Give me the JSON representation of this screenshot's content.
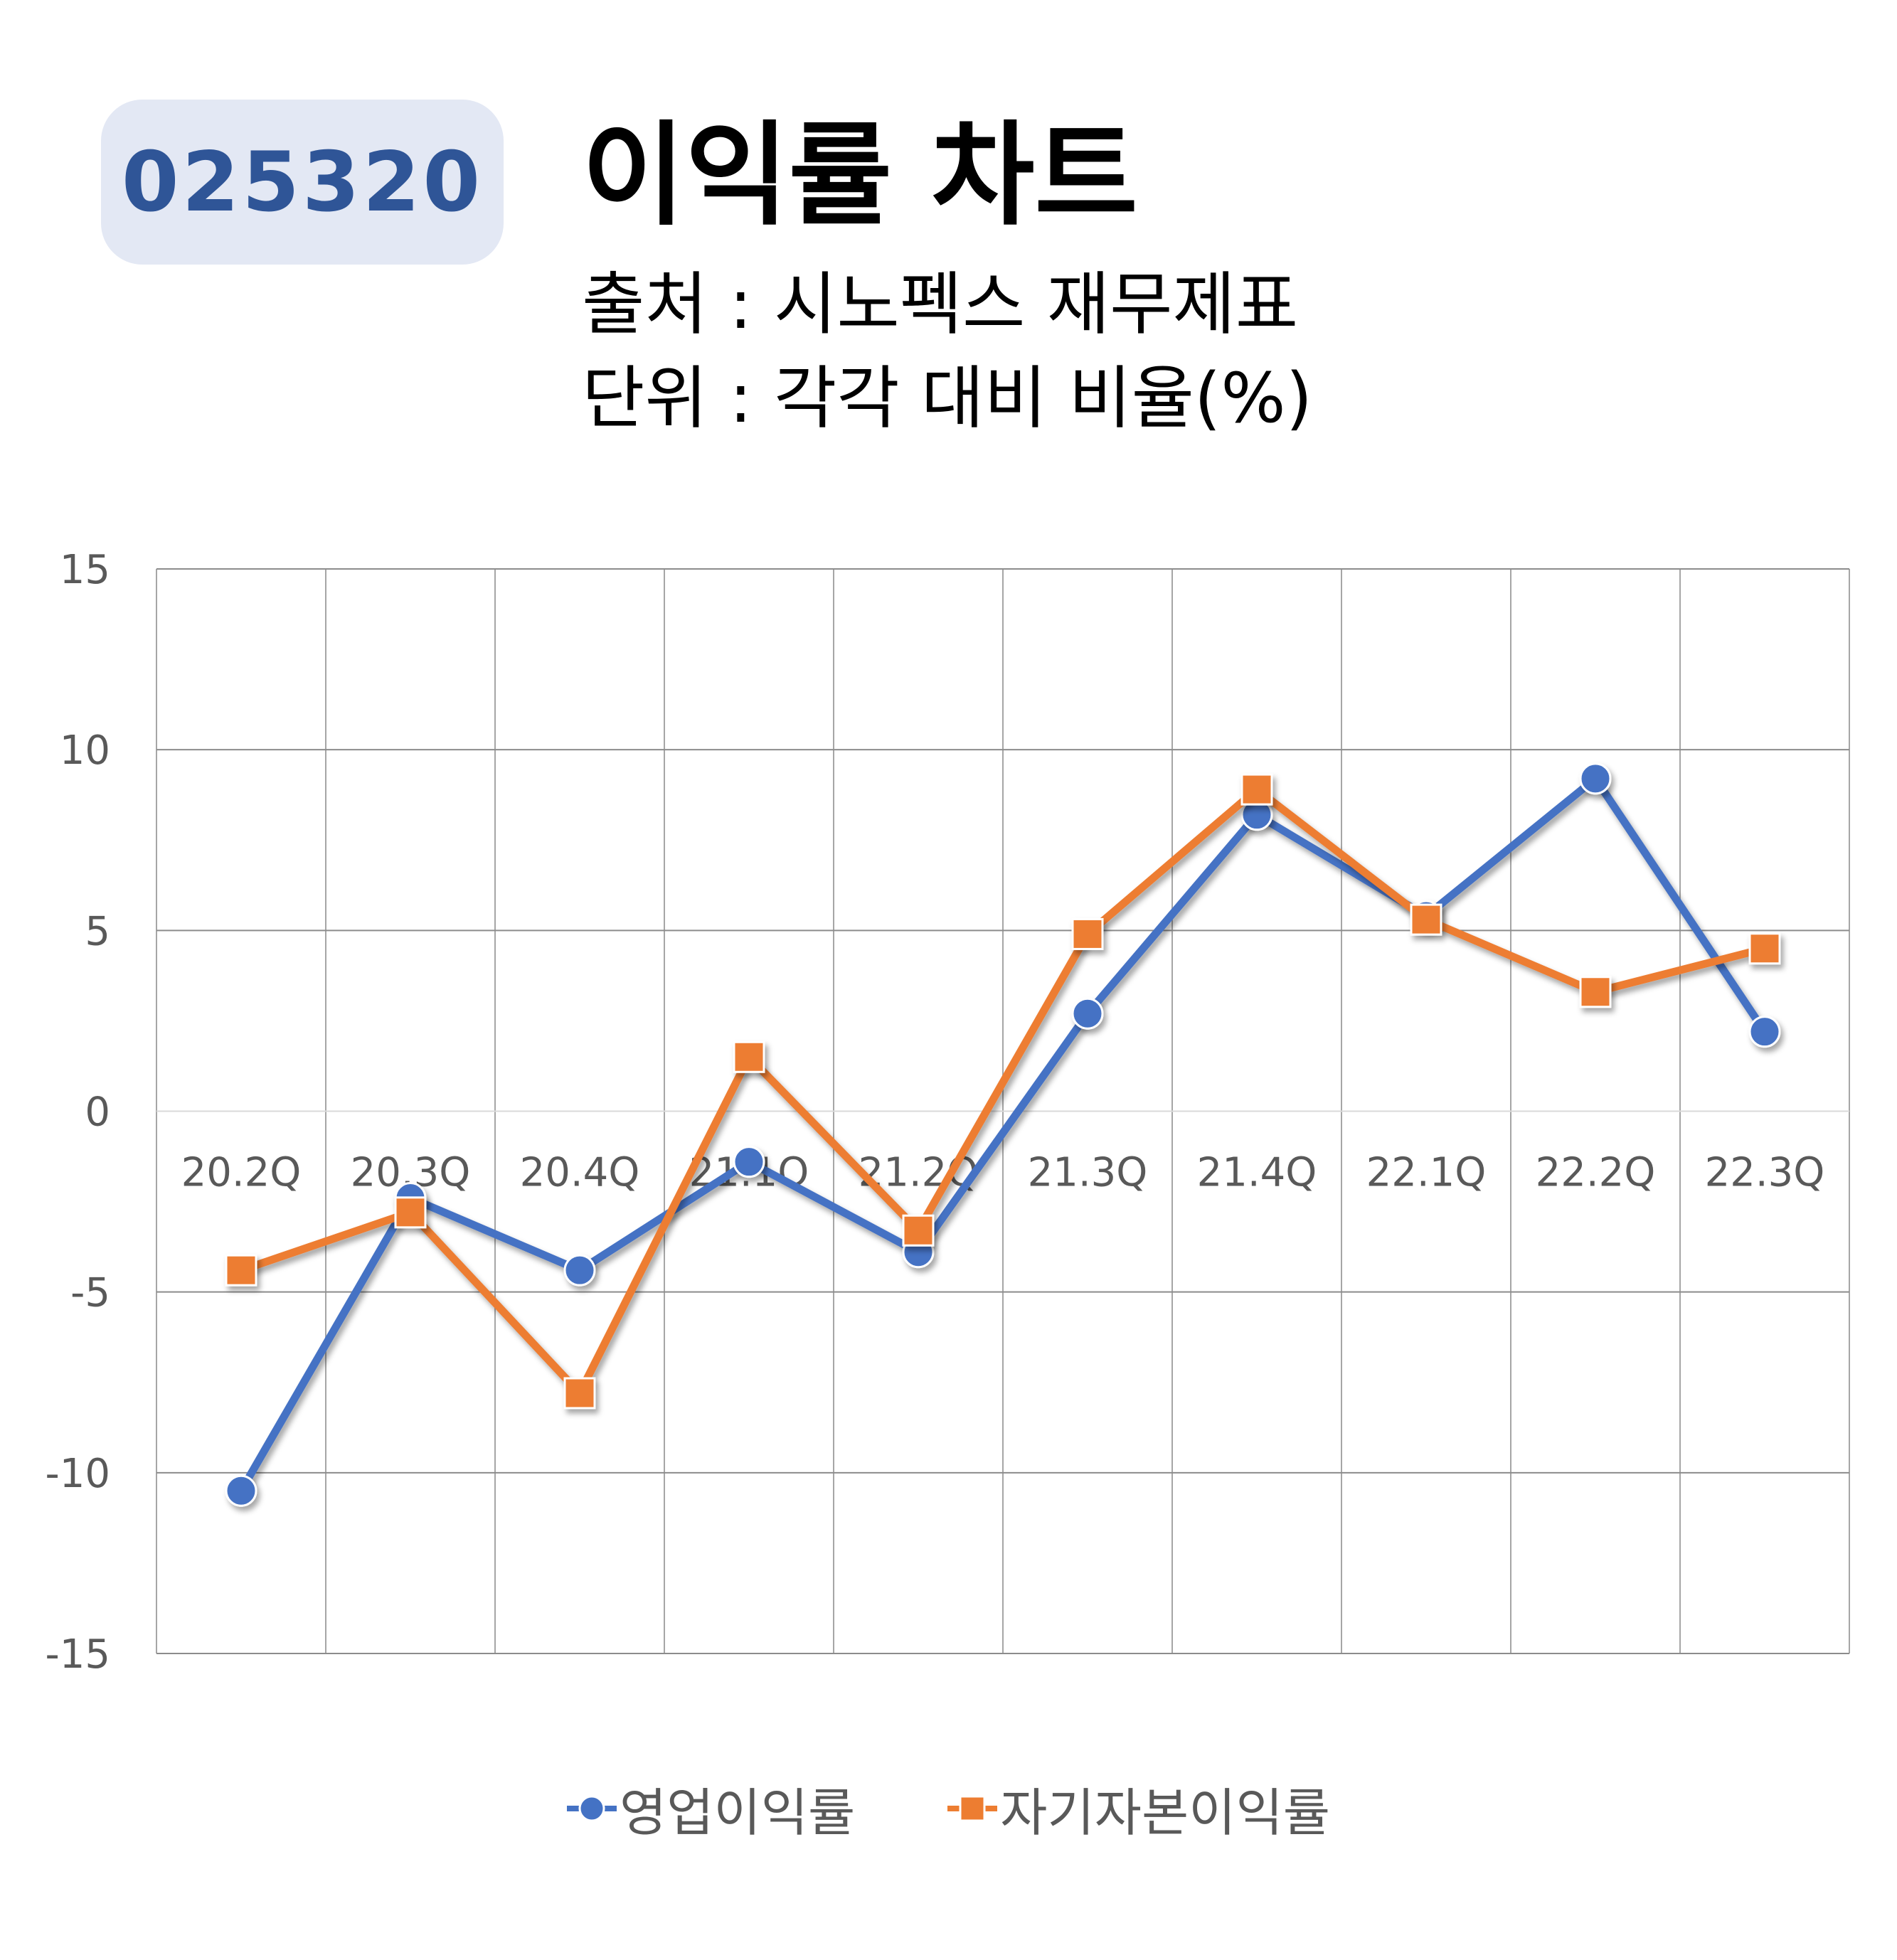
{
  "header": {
    "code": "025320",
    "title": "이익률 차트",
    "source": "출처 : 시노펙스 재무제표",
    "unit": "단위 : 각각 대비 비율(%)"
  },
  "chart_data": {
    "type": "line",
    "categories": [
      "20.2Q",
      "20.3Q",
      "20.4Q",
      "21.1Q",
      "21.2Q",
      "21.3Q",
      "21.4Q",
      "22.1Q",
      "22.2Q",
      "22.3Q"
    ],
    "series": [
      {
        "name": "영업이익률",
        "color": "#4472c4",
        "marker": "circle",
        "values": [
          -10.5,
          -2.4,
          -4.4,
          -1.4,
          -3.9,
          2.7,
          8.2,
          5.4,
          9.2,
          2.2
        ]
      },
      {
        "name": "자기자본이익률",
        "color": "#ed7d31",
        "marker": "square",
        "values": [
          -4.4,
          -2.8,
          -7.8,
          1.5,
          -3.3,
          4.9,
          8.9,
          5.3,
          3.3,
          4.5
        ]
      }
    ],
    "ylim": [
      -15,
      15
    ],
    "yticks": [
      "15",
      "10",
      "5",
      "0",
      "-5",
      "-10",
      "-15"
    ],
    "grid": true,
    "legend": "bottom"
  }
}
